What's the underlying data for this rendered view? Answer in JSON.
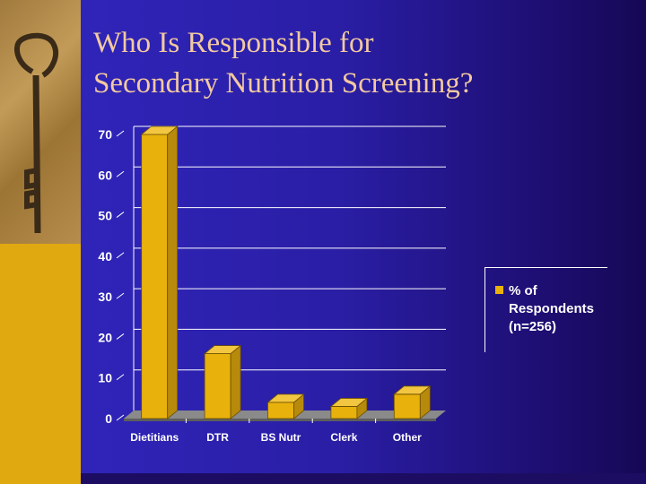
{
  "slide": {
    "title_line1": "Who Is Responsible for",
    "title_line2": "Secondary Nutrition Screening?"
  },
  "colors": {
    "slide_background": "#2a1ea6",
    "left_bar": "#e0a910",
    "bar_front": "#e8b10c",
    "bar_side": "#b78a0b",
    "bar_top": "#f2c640",
    "text": "#ffffff"
  },
  "chart_data": {
    "type": "bar",
    "categories": [
      "Dietitians",
      "DTR",
      "BS Nutr",
      "Clerk",
      "Other"
    ],
    "series": [
      {
        "name": "% of Respondents (n=256)",
        "values": [
          70,
          16,
          4,
          3,
          6
        ]
      }
    ],
    "ylim": [
      0,
      70
    ],
    "yticks": [
      "0",
      "10",
      "20",
      "30",
      "40",
      "50",
      "60",
      "70"
    ],
    "grid": true,
    "legend_position": "right",
    "legend_label": "% of Respondents (n=256)"
  }
}
